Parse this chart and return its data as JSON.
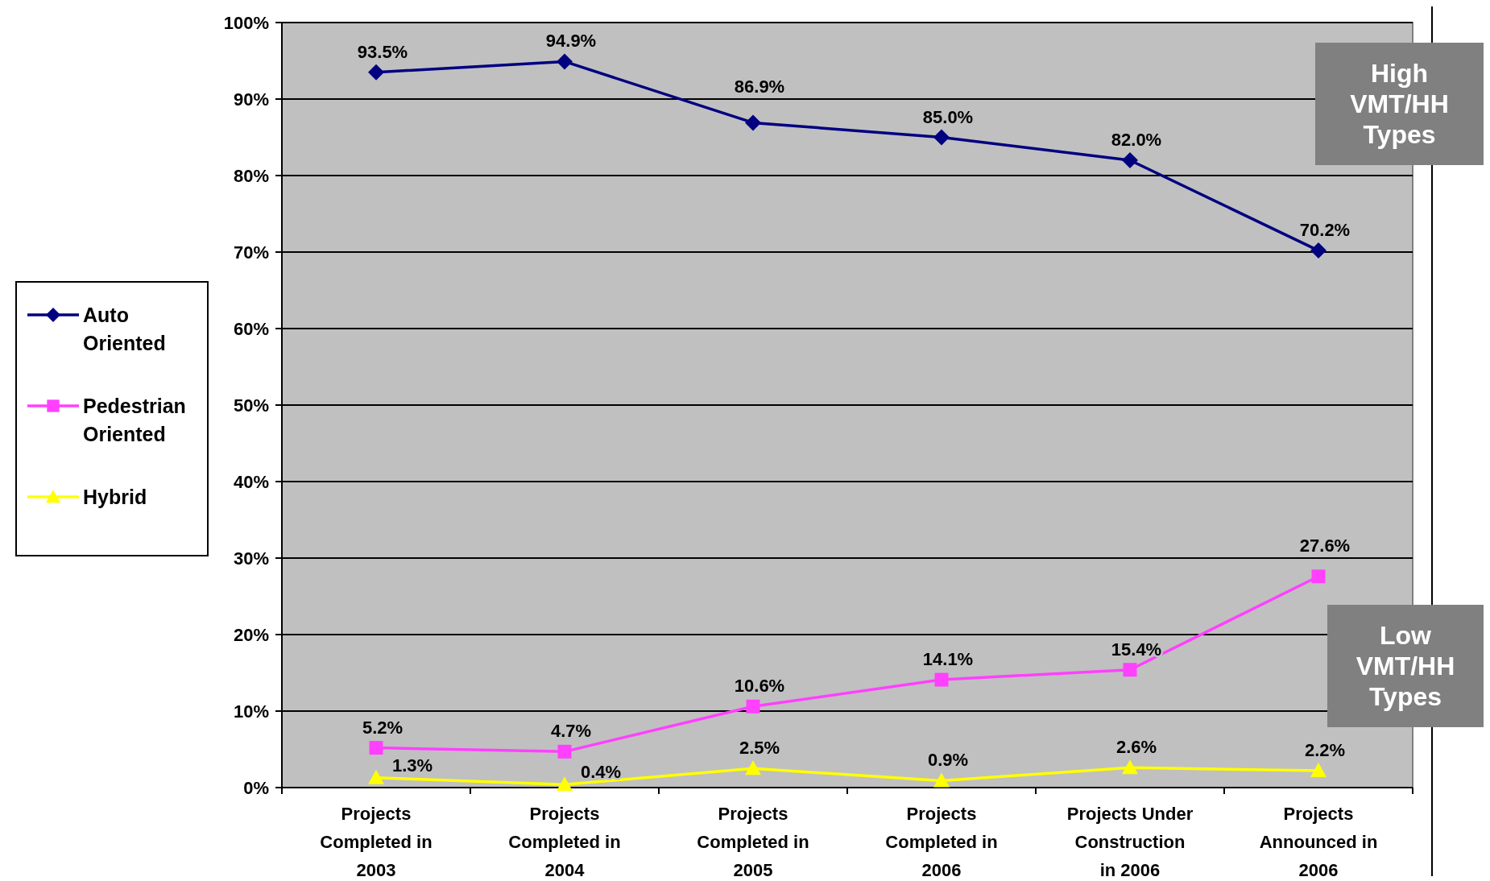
{
  "chart_data": {
    "type": "line",
    "categories": [
      "Projects Completed in 2003",
      "Projects Completed in 2004",
      "Projects Completed in 2005",
      "Projects Completed in 2006",
      "Projects Under Construction in 2006",
      "Projects Announced in 2006"
    ],
    "series": [
      {
        "name": "Auto Oriented",
        "color": "#000080",
        "marker": "diamond",
        "values": [
          93.5,
          94.9,
          86.9,
          85.0,
          82.0,
          70.2
        ]
      },
      {
        "name": "Pedestrian Oriented",
        "color": "#ff40ff",
        "marker": "square",
        "values": [
          5.2,
          4.7,
          10.6,
          14.1,
          15.4,
          27.6
        ]
      },
      {
        "name": "Hybrid",
        "color": "#ffff00",
        "marker": "triangle",
        "values": [
          1.3,
          0.4,
          2.5,
          0.9,
          2.6,
          2.2
        ]
      }
    ],
    "ylim": [
      0,
      100
    ],
    "yticks": [
      {
        "value": 0,
        "label": "0%"
      },
      {
        "value": 10,
        "label": "10%"
      },
      {
        "value": 20,
        "label": "20%"
      },
      {
        "value": 30,
        "label": "30%"
      },
      {
        "value": 40,
        "label": "40%"
      },
      {
        "value": 50,
        "label": "50%"
      },
      {
        "value": 60,
        "label": "60%"
      },
      {
        "value": 70,
        "label": "70%"
      },
      {
        "value": 80,
        "label": "80%"
      },
      {
        "value": 90,
        "label": "90%"
      },
      {
        "value": 100,
        "label": "100%"
      }
    ],
    "value_labels": [
      [
        "93.5%",
        "94.9%",
        "86.9%",
        "85.0%",
        "82.0%",
        "70.2%"
      ],
      [
        "5.2%",
        "4.7%",
        "10.6%",
        "14.1%",
        "15.4%",
        "27.6%"
      ],
      [
        "1.3%",
        "0.4%",
        "2.5%",
        "0.9%",
        "2.6%",
        "2.2%"
      ]
    ],
    "grid": "y",
    "legend": "left",
    "annotations": [
      "High VMT/HH Types",
      "Low VMT/HH Types"
    ]
  }
}
